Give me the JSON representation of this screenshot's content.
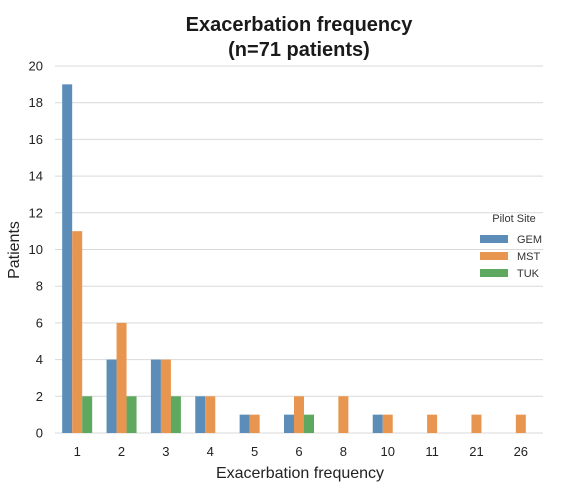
{
  "chart_data": {
    "type": "bar",
    "title_lines": [
      "Exacerbation frequency",
      "(n=71 patients)"
    ],
    "xlabel": "Exacerbation frequency",
    "ylabel": "Patients",
    "categories": [
      "1",
      "2",
      "3",
      "4",
      "5",
      "6",
      "8",
      "10",
      "11",
      "21",
      "26"
    ],
    "ylim": [
      0,
      20
    ],
    "yticks": [
      0,
      2,
      4,
      6,
      8,
      10,
      12,
      14,
      16,
      18,
      20
    ],
    "grid": "horizontal",
    "legend": {
      "title": "Pilot Site",
      "position": "right"
    },
    "series": [
      {
        "name": "GEM",
        "color": "#5b8db8",
        "values": [
          19,
          4,
          4,
          2,
          1,
          1,
          0,
          1,
          0,
          0,
          0
        ]
      },
      {
        "name": "MST",
        "color": "#e8964f",
        "values": [
          11,
          6,
          4,
          2,
          1,
          2,
          2,
          1,
          1,
          1,
          1
        ]
      },
      {
        "name": "TUK",
        "color": "#5fa85f",
        "values": [
          2,
          2,
          2,
          0,
          0,
          1,
          0,
          0,
          0,
          0,
          0
        ]
      }
    ]
  }
}
